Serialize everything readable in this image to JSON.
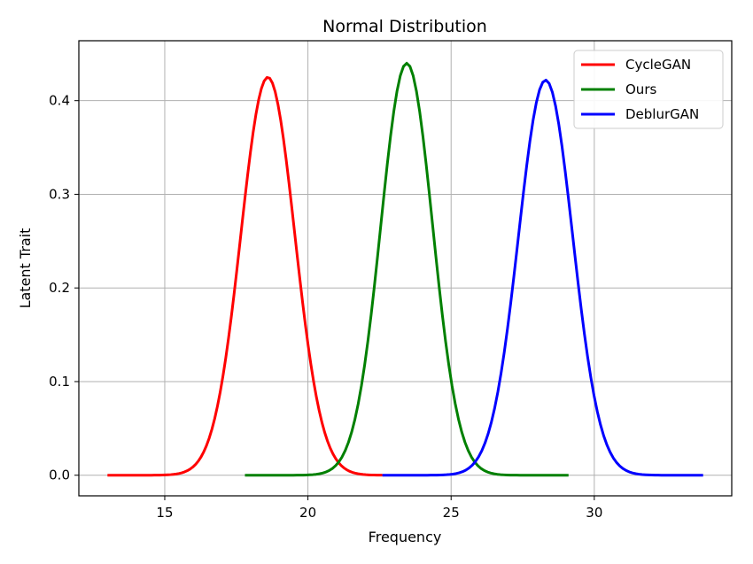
{
  "chart_data": {
    "type": "line",
    "title": "Normal Distribution",
    "xlabel": "Frequency",
    "ylabel": "Latent Trait",
    "xlim": [
      12.0,
      34.8
    ],
    "ylim": [
      -0.022,
      0.464
    ],
    "xticks": [
      15,
      20,
      25,
      30
    ],
    "yticks": [
      0.0,
      0.1,
      0.2,
      0.3,
      0.4
    ],
    "grid": true,
    "legend_position": "top-right",
    "series": [
      {
        "name": "CycleGAN",
        "color": "#ff0000",
        "mean": 18.6,
        "std": 0.94,
        "x_range": [
          13.0,
          22.6
        ],
        "peak": 0.425
      },
      {
        "name": "Ours",
        "color": "#008000",
        "mean": 23.45,
        "std": 0.905,
        "x_range": [
          17.8,
          29.1
        ],
        "peak": 0.44
      },
      {
        "name": "DeblurGAN",
        "color": "#0000ff",
        "mean": 28.3,
        "std": 0.945,
        "x_range": [
          22.6,
          33.8
        ],
        "peak": 0.422
      }
    ]
  }
}
